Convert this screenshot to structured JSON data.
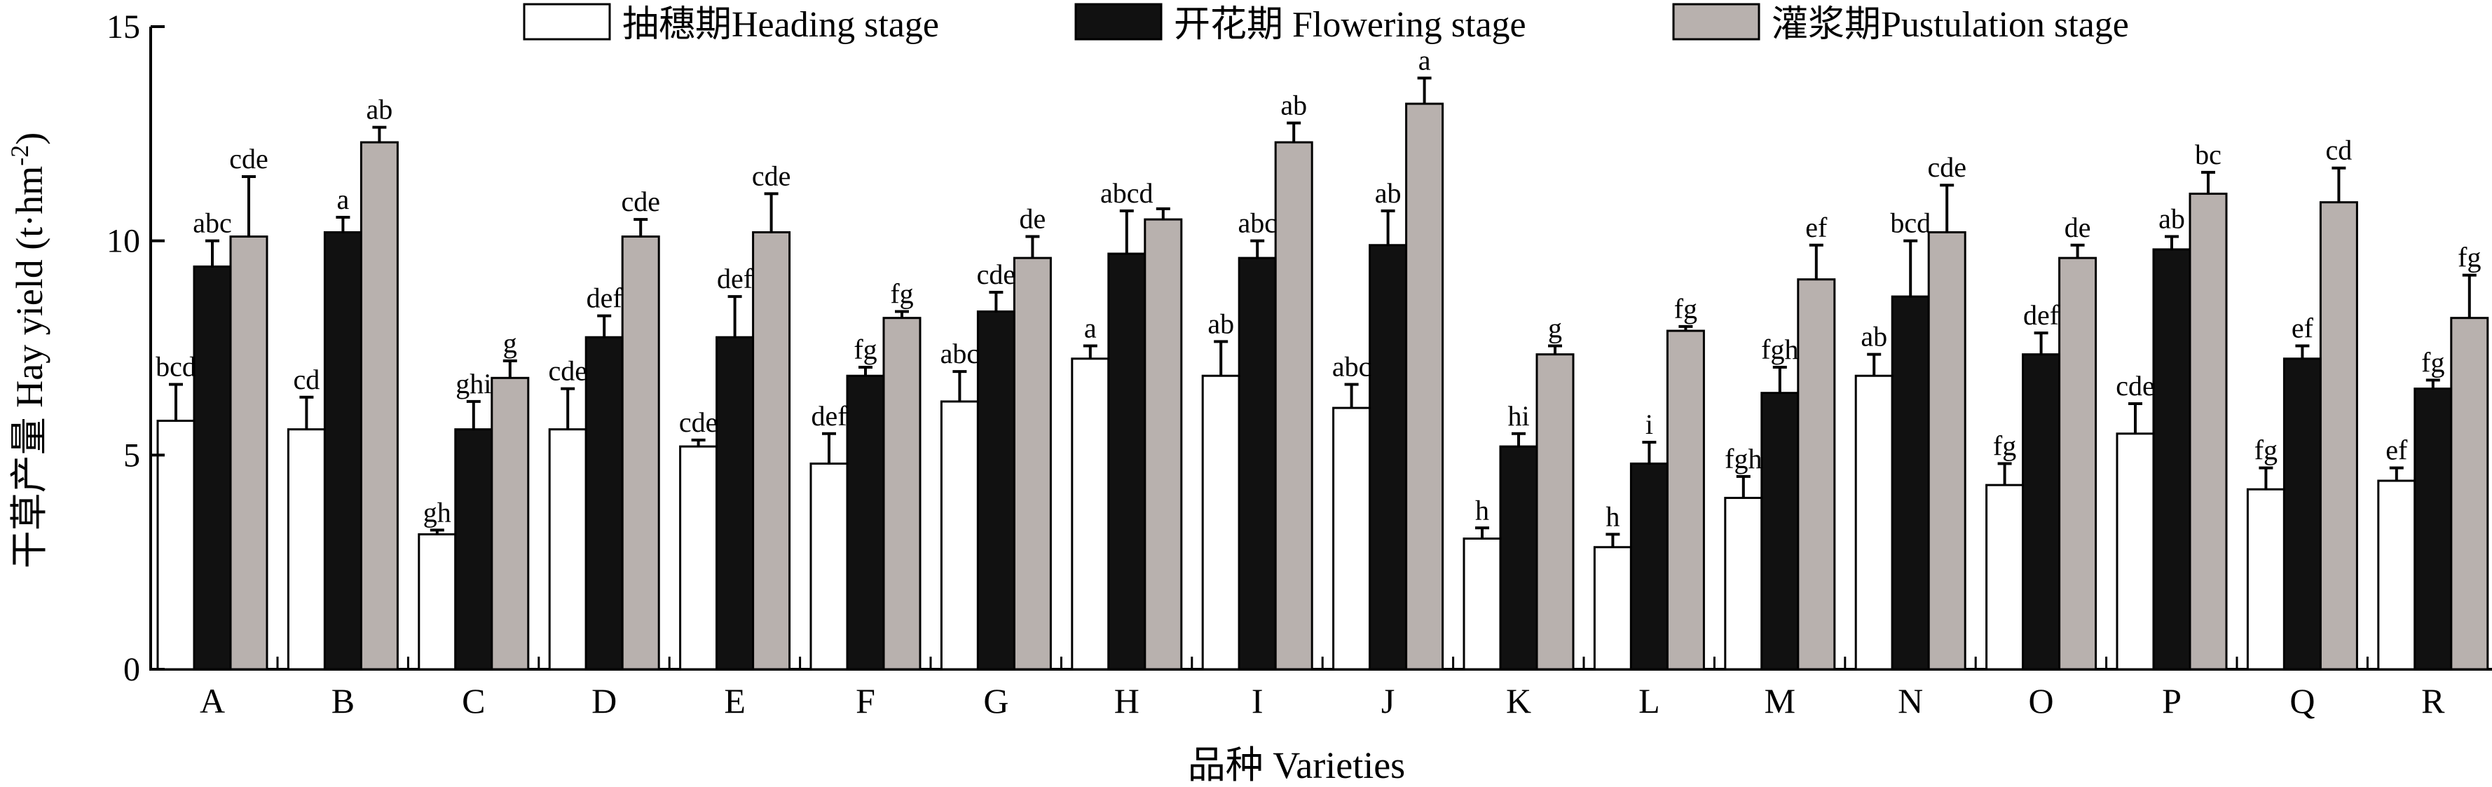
{
  "chart_data": {
    "type": "bar",
    "ylabel": "干草产量 Hay yield (t·hm",
    "ylabel_sup": "-2",
    "ylabel_close": ")",
    "xlabel": "品种 Varieties",
    "ylim": [
      0,
      15
    ],
    "yticks": [
      "0",
      "5",
      "10",
      "15"
    ],
    "legend_position": "top",
    "categories": [
      "A",
      "B",
      "C",
      "D",
      "E",
      "F",
      "G",
      "H",
      "I",
      "J",
      "K",
      "L",
      "M",
      "N",
      "O",
      "P",
      "Q",
      "R"
    ],
    "series": [
      {
        "name": "抽穗期Heading stage",
        "color": "#ffffff",
        "values": [
          5.8,
          5.6,
          3.15,
          5.6,
          5.2,
          4.8,
          6.25,
          7.25,
          6.85,
          6.1,
          3.05,
          2.85,
          4.0,
          6.85,
          4.3,
          5.5,
          4.2,
          4.4
        ],
        "errors": [
          0.85,
          0.75,
          0.1,
          0.95,
          0.15,
          0.7,
          0.7,
          0.3,
          0.8,
          0.55,
          0.25,
          0.3,
          0.5,
          0.5,
          0.5,
          0.7,
          0.5,
          0.3
        ],
        "letters": [
          "bcd",
          "cd",
          "gh",
          "cde",
          "cde",
          "def",
          "abc",
          "a",
          "ab",
          "abc",
          "h",
          "h",
          "fgh",
          "ab",
          "fg",
          "cde",
          "fg",
          "ef"
        ]
      },
      {
        "name": "开花期 Flowering stage",
        "color": "#111111",
        "values": [
          9.4,
          10.2,
          5.6,
          7.75,
          7.75,
          6.85,
          8.35,
          9.7,
          9.6,
          9.9,
          5.2,
          4.8,
          6.45,
          8.7,
          7.35,
          9.8,
          7.25,
          6.55
        ],
        "errors": [
          0.6,
          0.35,
          0.65,
          0.5,
          0.95,
          0.2,
          0.45,
          1.0,
          0.4,
          0.8,
          0.3,
          0.5,
          0.6,
          1.3,
          0.5,
          0.3,
          0.3,
          0.2
        ],
        "letters": [
          "abc",
          "a",
          "ghi",
          "def",
          "def",
          "fg",
          "cde",
          "abcd",
          "abc",
          "ab",
          "hi",
          "i",
          "fgh",
          "bcd",
          "def",
          "ab",
          "ef",
          "fg"
        ]
      },
      {
        "name": "灌浆期Pustulation stage",
        "color": "#b8b1ae",
        "values": [
          10.1,
          12.3,
          6.8,
          10.1,
          10.2,
          8.2,
          9.6,
          10.5,
          12.3,
          13.2,
          7.35,
          7.9,
          9.1,
          10.2,
          9.6,
          11.1,
          10.9,
          8.2
        ],
        "errors": [
          1.4,
          0.35,
          0.4,
          0.4,
          0.9,
          0.15,
          0.5,
          0.25,
          0.45,
          0.6,
          0.2,
          0.1,
          0.8,
          1.1,
          0.3,
          0.5,
          0.8,
          1.0
        ],
        "letters": [
          "cde",
          "ab",
          "g",
          "cde",
          "cde",
          "fg",
          "de",
          "",
          "ab",
          "a",
          "g",
          "fg",
          "ef",
          "cde",
          "de",
          "bc",
          "cd",
          "fg"
        ]
      }
    ]
  }
}
